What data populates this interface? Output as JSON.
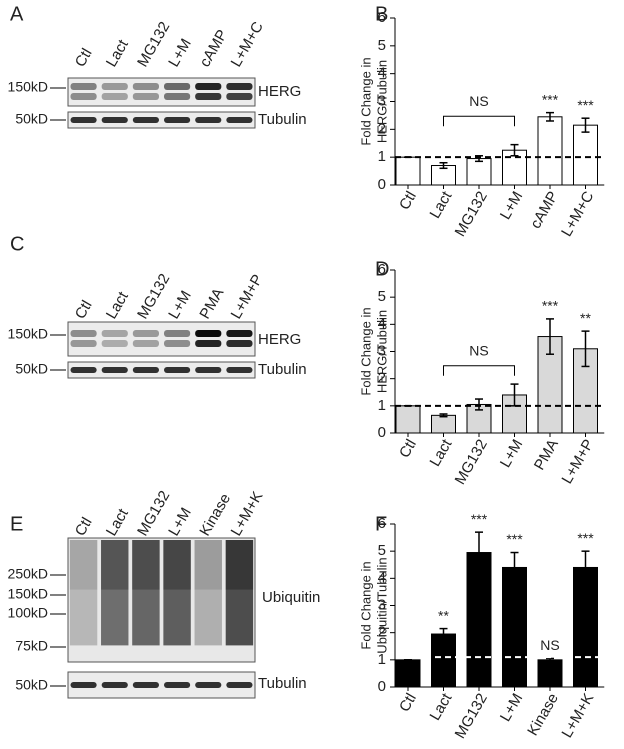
{
  "chart_data": [
    {
      "type": "bar",
      "letter": "B",
      "ylabel": [
        "Fold Change in",
        "HERG/Tubulin"
      ],
      "categories": [
        "Ctl",
        "Lact",
        "MG132",
        "L+M",
        "cAMP",
        "L+M+C"
      ],
      "values": [
        1,
        0.7,
        0.95,
        1.25,
        2.45,
        2.15
      ],
      "errors": [
        0,
        0.1,
        0.1,
        0.2,
        0.15,
        0.25
      ],
      "bar_labels": [
        null,
        null,
        null,
        null,
        "***",
        "***"
      ],
      "bracket": {
        "label": "NS",
        "span": [
          "Lact",
          "L+M"
        ]
      },
      "reference_line": 1,
      "reference_color": "#000000",
      "color": "#ffffff",
      "ylim": [
        0,
        6
      ],
      "yticks": [
        0,
        1,
        2,
        3,
        4,
        5,
        6
      ]
    },
    {
      "type": "bar",
      "letter": "D",
      "ylabel": [
        "Fold Change in",
        "HERG/Tubulin"
      ],
      "categories": [
        "Ctl",
        "Lact",
        "MG132",
        "L+M",
        "PMA",
        "L+M+P"
      ],
      "values": [
        1,
        0.65,
        1.05,
        1.4,
        3.55,
        3.1
      ],
      "errors": [
        0,
        0.05,
        0.2,
        0.4,
        0.65,
        0.65
      ],
      "bar_labels": [
        null,
        null,
        null,
        null,
        "***",
        "**"
      ],
      "bracket": {
        "label": "NS",
        "span": [
          "Lact",
          "L+M"
        ]
      },
      "reference_line": 1,
      "reference_color": "#000000",
      "color": "#d9d9d9",
      "ylim": [
        0,
        6
      ],
      "yticks": [
        0,
        1,
        2,
        3,
        4,
        5,
        6
      ]
    },
    {
      "type": "bar",
      "letter": "F",
      "ylabel": [
        "Fold Change in",
        "Ubiquitin/Tubulin"
      ],
      "categories": [
        "Ctl",
        "Lact",
        "MG132",
        "L+M",
        "Kinase",
        "L+M+K"
      ],
      "values": [
        1,
        1.95,
        4.95,
        4.4,
        1.0,
        4.4
      ],
      "errors": [
        0,
        0.2,
        0.75,
        0.55,
        0.05,
        0.6
      ],
      "bar_labels": [
        null,
        "**",
        "***",
        "***",
        "NS",
        "***"
      ],
      "reference_line": 1.1,
      "reference_color": "#ffffff",
      "color": "#000000",
      "ylim": [
        0,
        6
      ],
      "yticks": [
        0,
        1,
        2,
        3,
        4,
        5,
        6
      ]
    }
  ],
  "blots": [
    {
      "letter": "A",
      "lanes": [
        "Ctl",
        "Lact",
        "MG132",
        "L+M",
        "cAMP",
        "L+M+C"
      ],
      "markers": [
        "150kD",
        "50kD"
      ],
      "bands": [
        "HERG",
        "Tubulin"
      ]
    },
    {
      "letter": "C",
      "lanes": [
        "Ctl",
        "Lact",
        "MG132",
        "L+M",
        "PMA",
        "L+M+P"
      ],
      "markers": [
        "150kD",
        "50kD"
      ],
      "bands": [
        "HERG",
        "Tubulin"
      ]
    },
    {
      "letter": "E",
      "lanes": [
        "Ctl",
        "Lact",
        "MG132",
        "L+M",
        "Kinase",
        "L+M+K"
      ],
      "markers": [
        "250kD",
        "150kD",
        "100kD",
        "75kD",
        "50kD"
      ],
      "bands": [
        "Ubiquitin",
        "Tubulin"
      ]
    }
  ]
}
